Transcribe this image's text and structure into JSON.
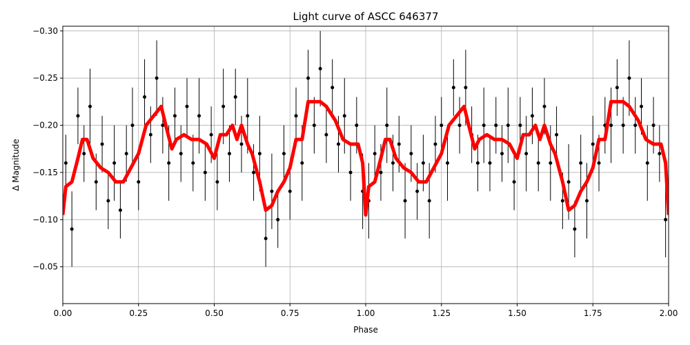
{
  "chart_data": {
    "type": "scatter",
    "title": "Light curve of ASCC 646377",
    "xlabel": "Phase",
    "ylabel": "Δ Magnitude",
    "xlim": [
      0,
      2
    ],
    "ylim": [
      -0.011,
      -0.305
    ],
    "xticks": [
      {
        "value": 0,
        "label": "0.00"
      },
      {
        "value": 0.25,
        "label": "0.25"
      },
      {
        "value": 0.5,
        "label": "0.50"
      },
      {
        "value": 0.75,
        "label": "0.75"
      },
      {
        "value": 1,
        "label": "1.00"
      },
      {
        "value": 1.25,
        "label": "1.25"
      },
      {
        "value": 1.5,
        "label": "1.50"
      },
      {
        "value": 1.75,
        "label": "1.75"
      },
      {
        "value": 2,
        "label": "2.00"
      }
    ],
    "yticks": [
      {
        "value": -0.3,
        "label": "−0.30"
      },
      {
        "value": -0.25,
        "label": "−0.25"
      },
      {
        "value": -0.2,
        "label": "−0.20"
      },
      {
        "value": -0.15,
        "label": "−0.15"
      },
      {
        "value": -0.1,
        "label": "−0.10"
      },
      {
        "value": -0.05,
        "label": "−0.05"
      }
    ],
    "grid": true,
    "points": {
      "color": "#000000",
      "x": [
        0.01,
        0.03,
        0.05,
        0.07,
        0.09,
        0.11,
        0.13,
        0.15,
        0.17,
        0.19,
        0.21,
        0.23,
        0.25,
        0.27,
        0.29,
        0.31,
        0.33,
        0.35,
        0.37,
        0.39,
        0.41,
        0.43,
        0.45,
        0.47,
        0.49,
        0.51,
        0.53,
        0.55,
        0.57,
        0.59,
        0.61,
        0.63,
        0.65,
        0.67,
        0.69,
        0.71,
        0.73,
        0.75,
        0.77,
        0.79,
        0.81,
        0.83,
        0.85,
        0.87,
        0.89,
        0.91,
        0.93,
        0.95,
        0.97,
        0.99,
        1.01,
        1.03,
        1.05,
        1.07,
        1.09,
        1.11,
        1.13,
        1.15,
        1.17,
        1.19,
        1.21,
        1.23,
        1.25,
        1.27,
        1.29,
        1.31,
        1.33,
        1.35,
        1.37,
        1.39,
        1.41,
        1.43,
        1.45,
        1.47,
        1.49,
        1.51,
        1.53,
        1.55,
        1.57,
        1.59,
        1.61,
        1.63,
        1.65,
        1.67,
        1.69,
        1.71,
        1.73,
        1.75,
        1.77,
        1.79,
        1.81,
        1.83,
        1.85,
        1.87,
        1.89,
        1.91,
        1.93,
        1.95,
        1.97,
        1.99
      ],
      "y": [
        -0.16,
        -0.09,
        -0.21,
        -0.17,
        -0.22,
        -0.14,
        -0.18,
        -0.12,
        -0.16,
        -0.11,
        -0.17,
        -0.2,
        -0.14,
        -0.23,
        -0.19,
        -0.25,
        -0.2,
        -0.16,
        -0.21,
        -0.17,
        -0.22,
        -0.16,
        -0.21,
        -0.15,
        -0.19,
        -0.14,
        -0.22,
        -0.17,
        -0.23,
        -0.18,
        -0.21,
        -0.15,
        -0.17,
        -0.08,
        -0.13,
        -0.1,
        -0.17,
        -0.13,
        -0.21,
        -0.16,
        -0.25,
        -0.2,
        -0.26,
        -0.19,
        -0.24,
        -0.18,
        -0.21,
        -0.15,
        -0.2,
        -0.13,
        -0.12,
        -0.17,
        -0.15,
        -0.2,
        -0.16,
        -0.18,
        -0.12,
        -0.17,
        -0.13,
        -0.16,
        -0.12,
        -0.18,
        -0.2,
        -0.16,
        -0.24,
        -0.2,
        -0.24,
        -0.19,
        -0.16,
        -0.2,
        -0.16,
        -0.2,
        -0.17,
        -0.2,
        -0.14,
        -0.2,
        -0.17,
        -0.21,
        -0.16,
        -0.22,
        -0.16,
        -0.19,
        -0.12,
        -0.14,
        -0.09,
        -0.16,
        -0.12,
        -0.18,
        -0.16,
        -0.2,
        -0.2,
        -0.24,
        -0.2,
        -0.25,
        -0.2,
        -0.22,
        -0.16,
        -0.2,
        -0.17,
        -0.1
      ],
      "yerr": [
        0.03,
        0.04,
        0.03,
        0.03,
        0.04,
        0.03,
        0.03,
        0.03,
        0.04,
        0.03,
        0.03,
        0.04,
        0.03,
        0.04,
        0.03,
        0.04,
        0.03,
        0.04,
        0.03,
        0.03,
        0.03,
        0.03,
        0.04,
        0.03,
        0.03,
        0.03,
        0.04,
        0.03,
        0.03,
        0.03,
        0.04,
        0.03,
        0.04,
        0.03,
        0.04,
        0.03,
        0.03,
        0.03,
        0.03,
        0.04,
        0.03,
        0.03,
        0.04,
        0.03,
        0.03,
        0.03,
        0.04,
        0.03,
        0.03,
        0.04,
        0.04,
        0.03,
        0.03,
        0.04,
        0.03,
        0.03,
        0.04,
        0.03,
        0.03,
        0.03,
        0.04,
        0.03,
        0.03,
        0.04,
        0.03,
        0.03,
        0.04,
        0.03,
        0.03,
        0.04,
        0.03,
        0.03,
        0.03,
        0.04,
        0.03,
        0.03,
        0.04,
        0.03,
        0.03,
        0.03,
        0.04,
        0.03,
        0.03,
        0.04,
        0.03,
        0.03,
        0.04,
        0.03,
        0.03,
        0.03,
        0.04,
        0.03,
        0.03,
        0.04,
        0.03,
        0.03,
        0.04,
        0.03,
        0.03,
        0.04
      ]
    },
    "curve": {
      "color": "#ff0000",
      "x": [
        0,
        0.01,
        0.03,
        0.05,
        0.065,
        0.08,
        0.1,
        0.125,
        0.15,
        0.175,
        0.2,
        0.225,
        0.25,
        0.275,
        0.3,
        0.325,
        0.34,
        0.36,
        0.375,
        0.4,
        0.425,
        0.45,
        0.475,
        0.5,
        0.52,
        0.54,
        0.56,
        0.575,
        0.59,
        0.61,
        0.625,
        0.65,
        0.67,
        0.69,
        0.71,
        0.73,
        0.75,
        0.77,
        0.79,
        0.81,
        0.83,
        0.85,
        0.87,
        0.9,
        0.925,
        0.95,
        0.975,
        0.99,
        1,
        1.01,
        1.03,
        1.05,
        1.065,
        1.08,
        1.1,
        1.125,
        1.15,
        1.175,
        1.2,
        1.225,
        1.25,
        1.275,
        1.3,
        1.325,
        1.34,
        1.36,
        1.375,
        1.4,
        1.425,
        1.45,
        1.475,
        1.5,
        1.52,
        1.54,
        1.56,
        1.575,
        1.59,
        1.61,
        1.625,
        1.65,
        1.67,
        1.69,
        1.71,
        1.73,
        1.75,
        1.77,
        1.79,
        1.81,
        1.83,
        1.85,
        1.87,
        1.9,
        1.925,
        1.95,
        1.975,
        1.99,
        2
      ],
      "y": [
        -0.105,
        -0.135,
        -0.14,
        -0.165,
        -0.185,
        -0.185,
        -0.165,
        -0.155,
        -0.15,
        -0.14,
        -0.14,
        -0.155,
        -0.17,
        -0.2,
        -0.21,
        -0.22,
        -0.2,
        -0.175,
        -0.185,
        -0.19,
        -0.185,
        -0.185,
        -0.18,
        -0.165,
        -0.19,
        -0.19,
        -0.2,
        -0.185,
        -0.2,
        -0.18,
        -0.17,
        -0.14,
        -0.11,
        -0.115,
        -0.13,
        -0.14,
        -0.155,
        -0.185,
        -0.185,
        -0.225,
        -0.225,
        -0.225,
        -0.22,
        -0.205,
        -0.185,
        -0.18,
        -0.18,
        -0.16,
        -0.105,
        -0.135,
        -0.14,
        -0.165,
        -0.185,
        -0.185,
        -0.165,
        -0.155,
        -0.15,
        -0.14,
        -0.14,
        -0.155,
        -0.17,
        -0.2,
        -0.21,
        -0.22,
        -0.2,
        -0.175,
        -0.185,
        -0.19,
        -0.185,
        -0.185,
        -0.18,
        -0.165,
        -0.19,
        -0.19,
        -0.2,
        -0.185,
        -0.2,
        -0.18,
        -0.17,
        -0.14,
        -0.11,
        -0.115,
        -0.13,
        -0.14,
        -0.155,
        -0.185,
        -0.185,
        -0.225,
        -0.225,
        -0.225,
        -0.22,
        -0.205,
        -0.185,
        -0.18,
        -0.18,
        -0.16,
        -0.105
      ]
    }
  }
}
